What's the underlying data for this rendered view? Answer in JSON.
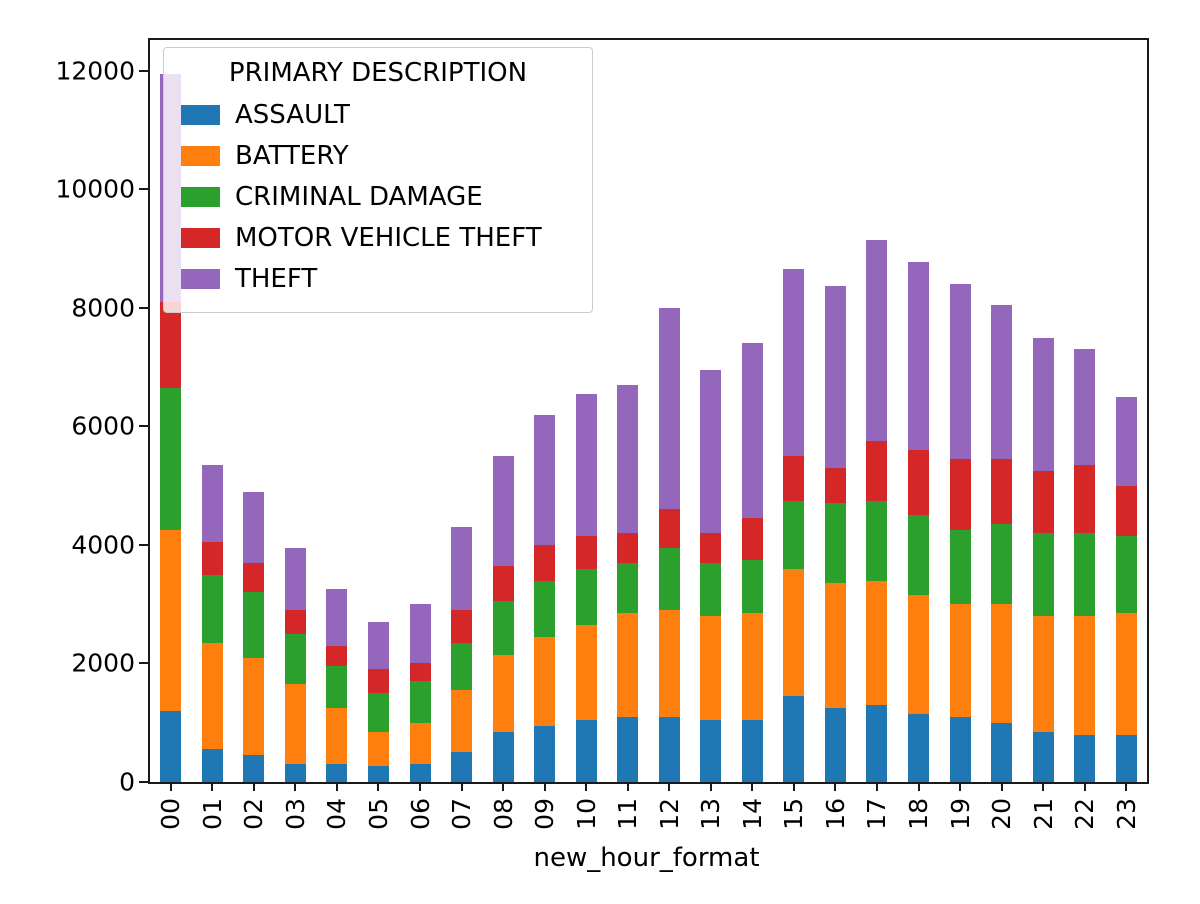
{
  "chart_data": {
    "type": "bar",
    "stacked": true,
    "title": "",
    "xlabel": "new_hour_format",
    "ylabel": "",
    "ylim": [
      0,
      12520
    ],
    "yticks": [
      0,
      2000,
      4000,
      6000,
      8000,
      10000,
      12000
    ],
    "grid": false,
    "legend_title": "PRIMARY DESCRIPTION",
    "legend_position": "upper left",
    "categories": [
      "00",
      "01",
      "02",
      "03",
      "04",
      "05",
      "06",
      "07",
      "08",
      "09",
      "10",
      "11",
      "12",
      "13",
      "14",
      "15",
      "16",
      "17",
      "18",
      "19",
      "20",
      "21",
      "22",
      "23"
    ],
    "series": [
      {
        "name": "ASSAULT",
        "color": "#1f77b4",
        "values": [
          1200,
          550,
          450,
          300,
          300,
          270,
          300,
          500,
          850,
          950,
          1050,
          1100,
          1100,
          1050,
          1050,
          1450,
          1250,
          1300,
          1150,
          1100,
          1000,
          850,
          800,
          800
        ]
      },
      {
        "name": "BATTERY",
        "color": "#ff7f0e",
        "values": [
          3050,
          1800,
          1650,
          1350,
          950,
          580,
          700,
          1050,
          1300,
          1500,
          1600,
          1750,
          1800,
          1750,
          1800,
          2150,
          2100,
          2100,
          2000,
          1900,
          2000,
          1950,
          2000,
          2050
        ]
      },
      {
        "name": "CRIMINAL DAMAGE",
        "color": "#2ca02c",
        "values": [
          2400,
          1150,
          1100,
          850,
          700,
          650,
          700,
          800,
          900,
          950,
          950,
          850,
          1050,
          900,
          900,
          1150,
          1350,
          1350,
          1350,
          1250,
          1350,
          1400,
          1400,
          1300
        ]
      },
      {
        "name": "MOTOR VEHICLE THEFT",
        "color": "#d62728",
        "values": [
          1450,
          550,
          500,
          400,
          350,
          400,
          300,
          550,
          600,
          600,
          550,
          500,
          650,
          500,
          700,
          750,
          600,
          1000,
          1100,
          1200,
          1100,
          1050,
          1150,
          850
        ]
      },
      {
        "name": "THEFT",
        "color": "#9467bd",
        "values": [
          3850,
          1300,
          1200,
          1050,
          950,
          800,
          1000,
          1400,
          1850,
          2200,
          2400,
          2500,
          3400,
          2750,
          2950,
          3150,
          3070,
          3400,
          3180,
          2950,
          2600,
          2250,
          1950,
          1500
        ]
      }
    ]
  }
}
